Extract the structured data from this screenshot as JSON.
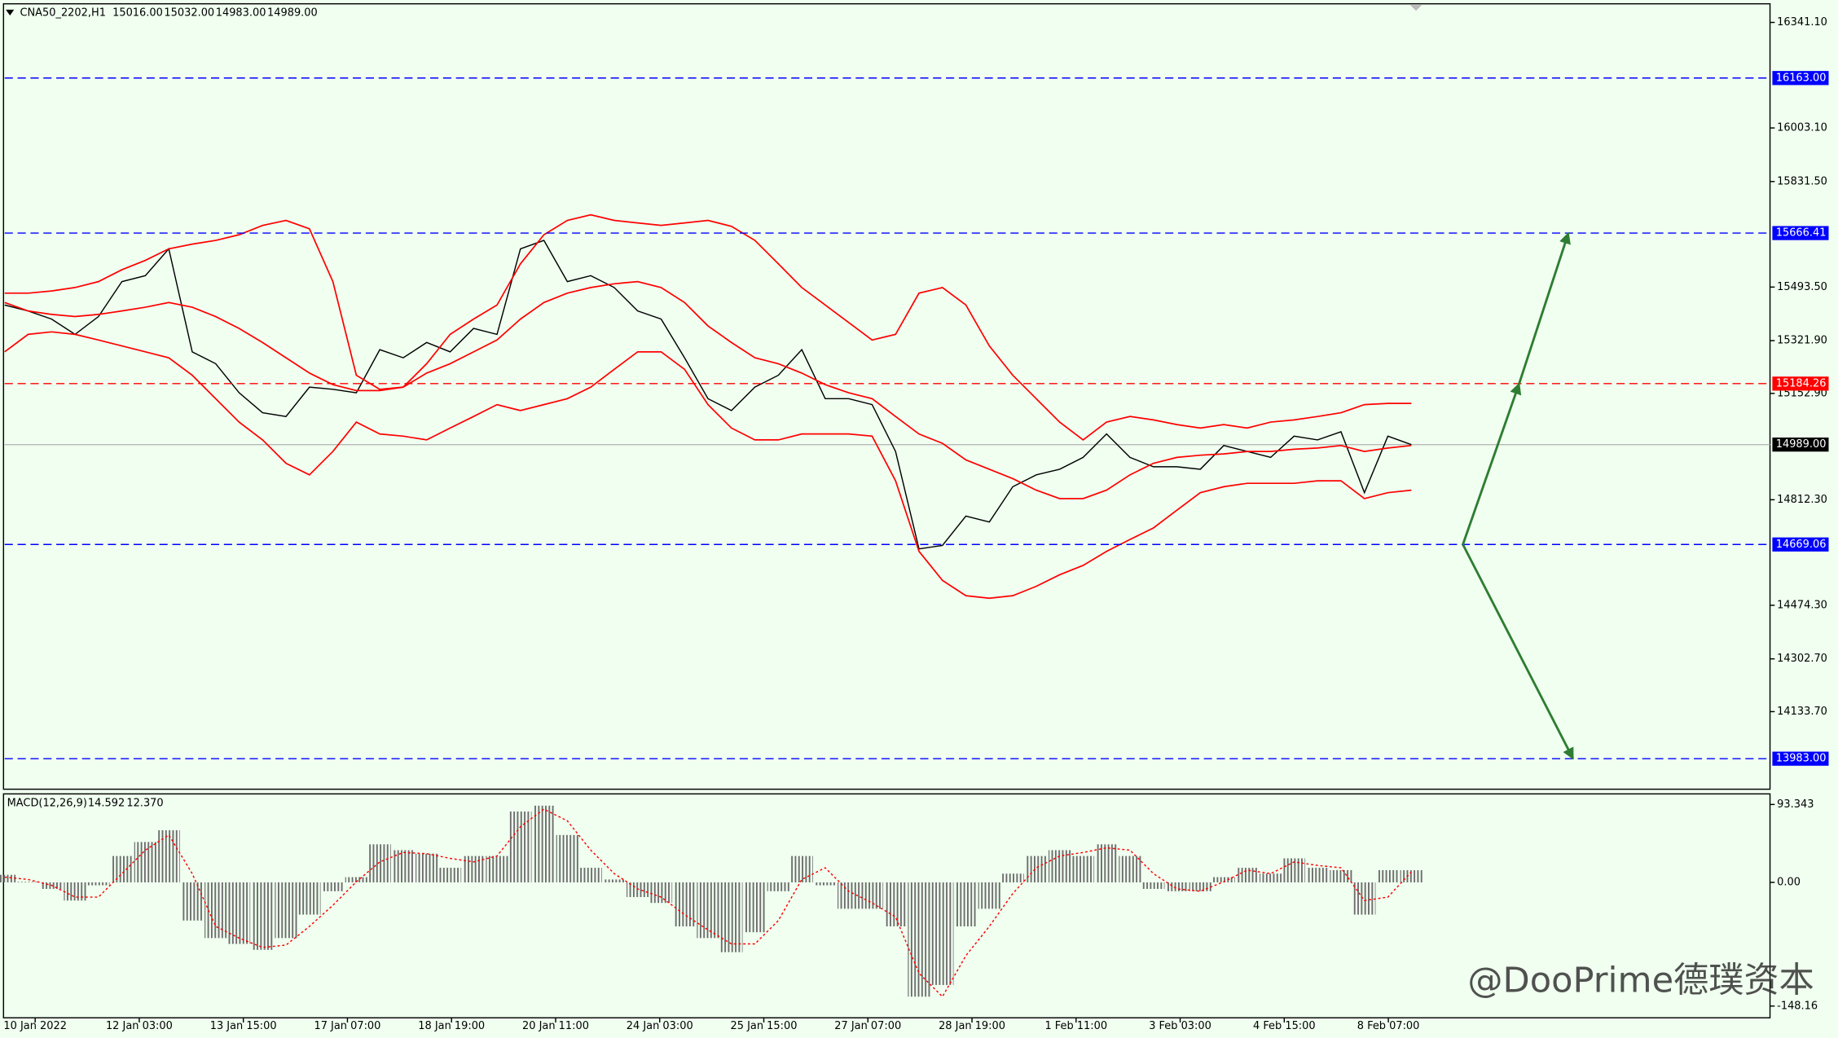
{
  "chart_data": [
    {
      "type": "line",
      "title": "CNA50_2202,H1",
      "ohlc": [
        {
          "value": 15016,
          "label": "15016.00"
        },
        {
          "value": 15032,
          "label": "15032.00"
        },
        {
          "value": 14983,
          "label": "14983.00"
        },
        {
          "value": 14989,
          "label": "14989.00"
        }
      ],
      "xtick_labels": [
        "10 Jan 2022",
        "12 Jan 03:00",
        "13 Jan 15:00",
        "17 Jan 07:00",
        "18 Jan 19:00",
        "20 Jan 11:00",
        "24 Jan 03:00",
        "25 Jan 15:00",
        "27 Jan 07:00",
        "28 Jan 19:00",
        "1 Feb 11:00",
        "3 Feb 03:00",
        "4 Feb 15:00",
        "8 Feb 07:00"
      ],
      "ylim": [
        13889,
        16397
      ],
      "yticks": [
        {
          "value": 16341.1,
          "label": "16341.10"
        },
        {
          "value": 16003.1,
          "label": "16003.10"
        },
        {
          "value": 15831.5,
          "label": "15831.50"
        },
        {
          "value": 15493.5,
          "label": "15493.50"
        },
        {
          "value": 15321.9,
          "label": "15321.90"
        },
        {
          "value": 15152.9,
          "label": "15152.90"
        },
        {
          "value": 14812.3,
          "label": "14812.30"
        },
        {
          "value": 14474.3,
          "label": "14474.30"
        },
        {
          "value": 14302.7,
          "label": "14302.70"
        },
        {
          "value": 14133.7,
          "label": "14133.70"
        }
      ],
      "series": [
        {
          "color": "#000000",
          "values": [
            15436,
            15417,
            15391,
            15342,
            15399,
            15511,
            15530,
            15616,
            15286,
            15248,
            15155,
            15091,
            15079,
            15173,
            15166,
            15155,
            15293,
            15267,
            15316,
            15286,
            15361,
            15342,
            15616,
            15643,
            15511,
            15530,
            15492,
            15417,
            15391,
            15267,
            15136,
            15098,
            15173,
            15211,
            15293,
            15136,
            15136,
            15117,
            14967,
            14655,
            14666,
            14760,
            14741,
            14854,
            14892,
            14910,
            14948,
            15023,
            14948,
            14918,
            14918,
            14910,
            14986,
            14967,
            14948,
            15016,
            15004,
            15030,
            14835,
            15016,
            14989
          ]
        },
        {
          "color": "#ff0000",
          "values": [
            15474,
            15474,
            15481,
            15492,
            15511,
            15549,
            15579,
            15616,
            15631,
            15643,
            15661,
            15691,
            15707,
            15680,
            15511,
            15211,
            15166,
            15173,
            15248,
            15342,
            15391,
            15436,
            15568,
            15661,
            15707,
            15725,
            15707,
            15699,
            15691,
            15699,
            15707,
            15688,
            15643,
            15568,
            15492,
            15436,
            15380,
            15324,
            15342,
            15474,
            15492,
            15436,
            15305,
            15211,
            15136,
            15061,
            15004,
            15061,
            15079,
            15068,
            15053,
            15042,
            15053,
            15042,
            15061,
            15068,
            15079,
            15091,
            15117,
            15121,
            15121
          ]
        },
        {
          "color": "#ff0000",
          "values": [
            15444,
            15417,
            15406,
            15399,
            15406,
            15417,
            15429,
            15444,
            15429,
            15399,
            15361,
            15316,
            15267,
            15218,
            15181,
            15162,
            15162,
            15173,
            15218,
            15248,
            15286,
            15324,
            15391,
            15444,
            15474,
            15492,
            15504,
            15511,
            15492,
            15444,
            15369,
            15316,
            15267,
            15248,
            15218,
            15181,
            15155,
            15136,
            15079,
            15023,
            14993,
            14940,
            14910,
            14880,
            14843,
            14816,
            14816,
            14843,
            14892,
            14929,
            14948,
            14955,
            14959,
            14967,
            14967,
            14974,
            14978,
            14986,
            14967,
            14978,
            14986
          ]
        },
        {
          "color": "#ff0000",
          "values": [
            15286,
            15342,
            15350,
            15342,
            15324,
            15305,
            15286,
            15267,
            15211,
            15136,
            15061,
            15004,
            14929,
            14892,
            14967,
            15061,
            15023,
            15016,
            15004,
            15042,
            15079,
            15117,
            15098,
            15117,
            15136,
            15173,
            15230,
            15286,
            15286,
            15230,
            15117,
            15042,
            15004,
            15004,
            15023,
            15023,
            15023,
            15016,
            14873,
            14647,
            14554,
            14505,
            14497,
            14505,
            14535,
            14572,
            14602,
            14647,
            14685,
            14722,
            14779,
            14835,
            14854,
            14865,
            14865,
            14865,
            14873,
            14873,
            14816,
            14835,
            14843
          ]
        }
      ],
      "levels": [
        {
          "value": 16163,
          "label": "16163.00",
          "color": "#0000ff"
        },
        {
          "value": 15666.41,
          "label": "15666.41",
          "color": "#0000ff"
        },
        {
          "value": 15184.26,
          "label": "15184.26",
          "color": "#ff0000"
        },
        {
          "value": 14669.06,
          "label": "14669.06",
          "color": "#0000ff"
        },
        {
          "value": 13983,
          "label": "13983.00",
          "color": "#0000ff"
        }
      ],
      "current_price": {
        "value": 14989,
        "label": "14989.00"
      },
      "arrow_color": "#2e7d32",
      "watermark": "@DooPrime德璞资本"
    },
    {
      "type": "macd",
      "title": "MACD(12,26,9)",
      "readings": [
        14.592,
        {
          "value": 12.37,
          "label": "12.370"
        }
      ],
      "ylim": [
        -162.2,
        106
      ],
      "yticks": [
        {
          "value": 93.343,
          "label": "93.343"
        },
        {
          "value": 0,
          "label": "0.00"
        },
        {
          "value": -148.16,
          "label": "-148.16"
        }
      ],
      "values": [
        9.1,
        0.7,
        -7.8,
        -21.8,
        -3.5,
        31.6,
        48.4,
        62.5,
        -45.7,
        -66.7,
        -73.7,
        -80.8,
        -66.7,
        -38.6,
        -10.6,
        6.3,
        45.6,
        38.6,
        34.4,
        17.5,
        31.6,
        31.6,
        84.9,
        91.9,
        56.8,
        17.5,
        3.5,
        -17.6,
        -24.6,
        -52.7,
        -66.7,
        -83.6,
        -59.7,
        -10.6,
        31.6,
        -3.5,
        -31.6,
        -31.6,
        -52.7,
        -136.9,
        -122.9,
        -52.7,
        -31.6,
        10.5,
        31.6,
        38.6,
        31.6,
        45.6,
        31.6,
        -7.8,
        -10.6,
        -10.6,
        6.3,
        17.5,
        10.5,
        28.8,
        17.5,
        14.7,
        -38.6,
        14.7,
        14.6
      ],
      "color": "#777777",
      "signal": {
        "color": "#ff0000",
        "values": [
          6.3,
          3.5,
          -3.5,
          -17.6,
          -17.6,
          10.5,
          38.6,
          56.8,
          10.5,
          -52.7,
          -66.7,
          -77.9,
          -75.1,
          -52.7,
          -27.4,
          0.7,
          24.5,
          35.8,
          34.4,
          28.8,
          24.5,
          31.6,
          66.7,
          87.7,
          73.7,
          38.6,
          10.5,
          -7.8,
          -17.6,
          -38.6,
          -56.9,
          -73.7,
          -73.7,
          -45.7,
          3.5,
          17.5,
          -10.6,
          -24.6,
          -41.4,
          -108.8,
          -136.9,
          -87.8,
          -52.7,
          -13.4,
          17.5,
          31.6,
          35.8,
          41.4,
          38.6,
          10.5,
          -7.8,
          -10.6,
          0.7,
          14.7,
          10.5,
          24.5,
          20.3,
          17.5,
          -21.8,
          -17.6,
          12.4
        ]
      }
    }
  ]
}
